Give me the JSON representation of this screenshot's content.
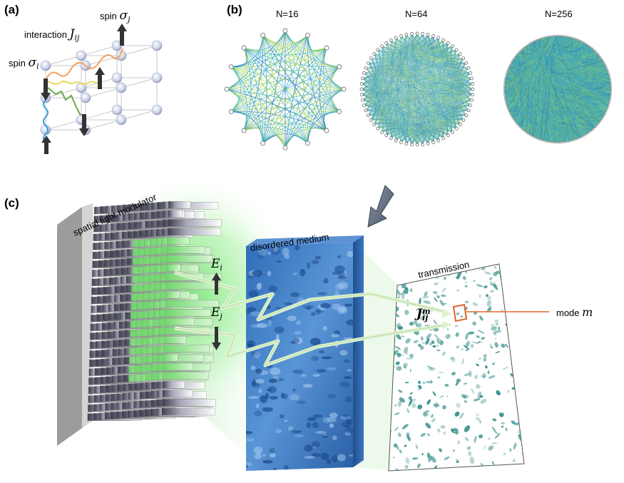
{
  "panel_a": {
    "label": "(a)",
    "interaction_text": "interaction",
    "interaction_symbol": "J",
    "interaction_sub": "ij",
    "spin_i_text": "spin",
    "spin_i_symbol": "σ",
    "spin_i_sub": "i",
    "spin_j_text": "spin",
    "spin_j_symbol": "σ",
    "spin_j_sub": "j"
  },
  "panel_b": {
    "label": "(b)",
    "graphs": [
      {
        "title": "N=16",
        "nodes": 16
      },
      {
        "title": "N=64",
        "nodes": 64
      },
      {
        "title": "N=256",
        "nodes": 256
      }
    ]
  },
  "panel_c": {
    "label": "(c)",
    "slm_label": "spatial light modulator",
    "medium_label": "disordered medium",
    "transmission_label": "transmission",
    "mode_text": "mode",
    "mode_symbol": "m",
    "field_i_symbol": "E",
    "field_i_sub": "i",
    "field_j_symbol": "E",
    "field_j_sub": "j",
    "coupling_symbol": "J",
    "coupling_sub": "ij",
    "coupling_sup": "m"
  },
  "colors": {
    "green_glow": "#5fe35a",
    "medium_blue": "#3f7fc7",
    "speckle": "#2e8a86",
    "mode_box": "#e0642a",
    "arrow": "#6b7a8a",
    "wave_orange": "#f0a060",
    "wave_yellow": "#e8d860",
    "wave_green": "#6aaa4a",
    "wave_blue": "#3aa0e0"
  }
}
